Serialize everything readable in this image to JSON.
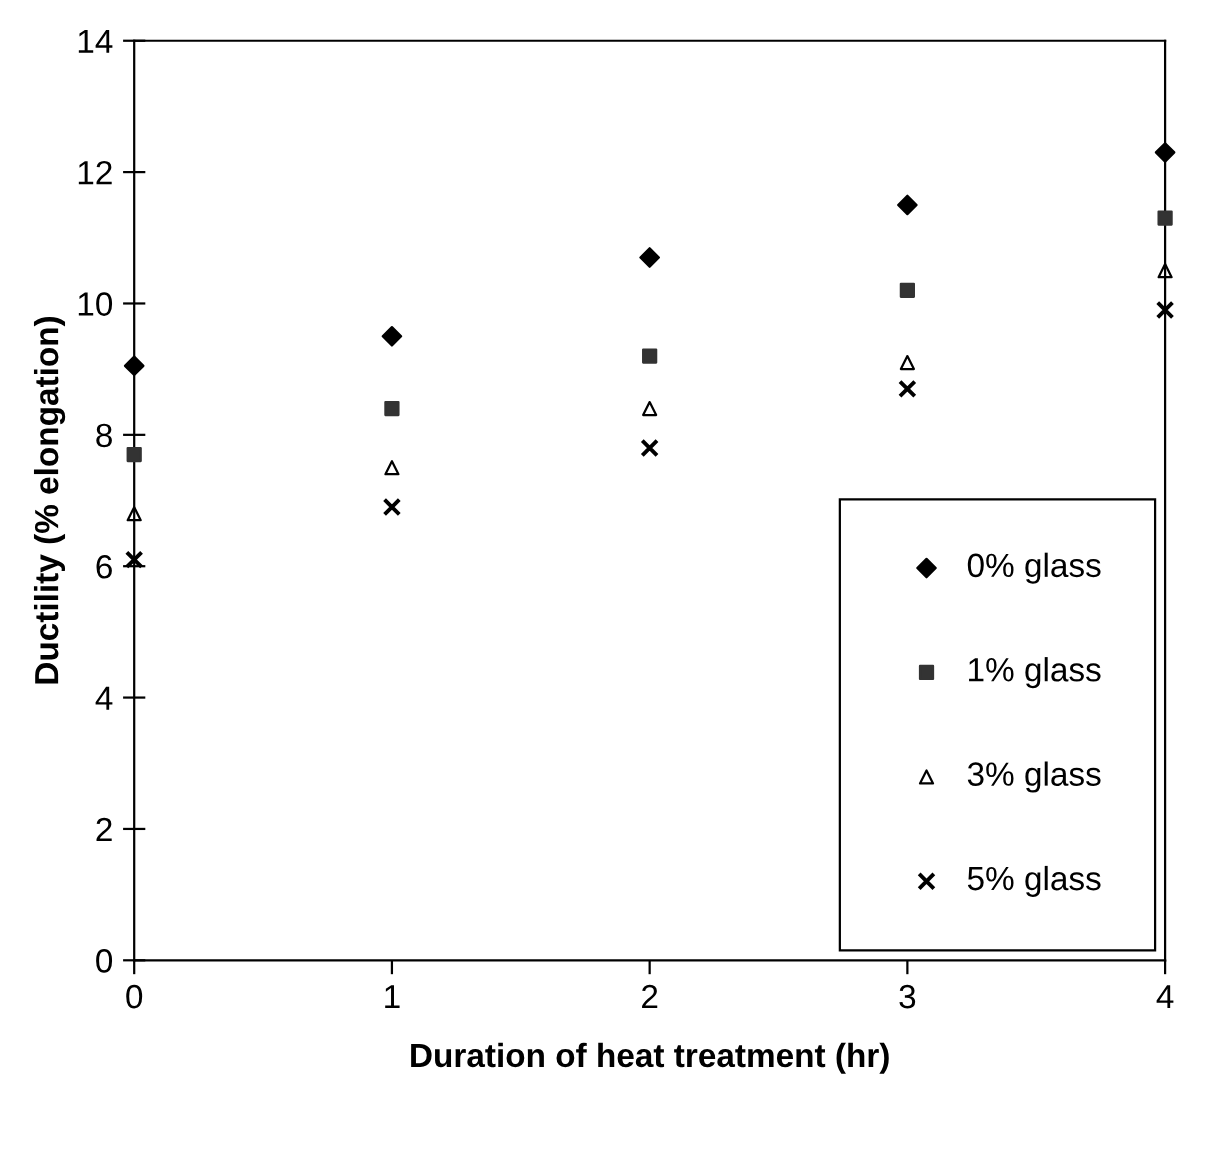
{
  "chart_data": {
    "type": "scatter",
    "xlabel": "Duration of heat treatment (hr)",
    "ylabel": "Ductility (% elongation)",
    "x": [
      0,
      1,
      2,
      3,
      4
    ],
    "series": [
      {
        "name": "0% glass",
        "color": "#000000",
        "marker": "diamond",
        "values": [
          9.05,
          9.5,
          10.7,
          11.5,
          12.3
        ]
      },
      {
        "name": "1% glass",
        "color": "#333333",
        "marker": "square",
        "values": [
          7.7,
          8.4,
          9.2,
          10.2,
          11.3
        ]
      },
      {
        "name": "3% glass",
        "color": "#000000",
        "marker": "triangle",
        "values": [
          6.8,
          7.5,
          8.4,
          9.1,
          10.5
        ]
      },
      {
        "name": "5% glass",
        "color": "#000000",
        "marker": "cross",
        "values": [
          6.1,
          6.9,
          7.8,
          8.7,
          9.9
        ]
      }
    ],
    "xlim": [
      0,
      4
    ],
    "xticks": [
      0,
      1,
      2,
      3,
      4
    ],
    "ylim": [
      0,
      14
    ],
    "yticks": [
      0,
      2,
      4,
      6,
      8,
      10,
      12,
      14
    ],
    "grid": false,
    "legend": "bottom right"
  }
}
